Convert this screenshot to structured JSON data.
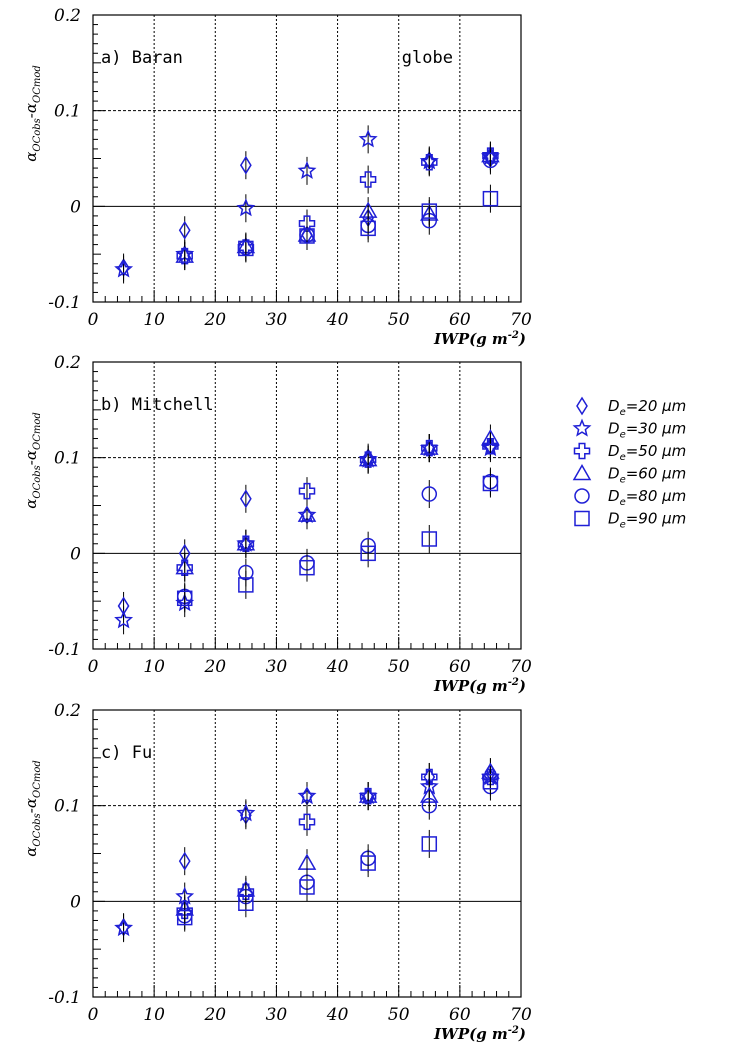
{
  "chart_data": [
    {
      "type": "scatter",
      "panel_label": "a) Baran",
      "annotation": "globe",
      "xlabel": "IWP(g m-2)",
      "xlabel_main": "IWP(g m",
      "xlabel_exp": "-2",
      "xlabel_close": ")",
      "ylabel_alpha1": "α",
      "ylabel_sub1": "OCobs",
      "ylabel_minus": "-",
      "ylabel_alpha2": "α",
      "ylabel_sub2": "OCmod",
      "xlim": [
        0,
        70
      ],
      "ylim": [
        -0.1,
        0.2
      ],
      "xticks": [
        0,
        10,
        20,
        30,
        40,
        50,
        60,
        70
      ],
      "xtick_labels": [
        "0",
        "10",
        "20",
        "30",
        "40",
        "50",
        "60",
        "70"
      ],
      "yticks": [
        -0.1,
        0,
        0.1,
        0.2
      ],
      "ytick_labels": [
        "-0.1",
        "0",
        "0.1",
        "0.2"
      ],
      "series": [
        {
          "name": "De=20 µm",
          "marker": "diamond",
          "points": [
            [
              5,
              -0.064
            ],
            [
              15,
              -0.025
            ],
            [
              25,
              0.043
            ],
            [
              35,
              -0.03
            ],
            [
              45,
              -0.012
            ],
            [
              55,
              0.048
            ],
            [
              65,
              0.05
            ]
          ]
        },
        {
          "name": "De=30 µm",
          "marker": "star",
          "points": [
            [
              5,
              -0.066
            ],
            [
              15,
              -0.05
            ],
            [
              25,
              -0.002
            ],
            [
              35,
              0.037
            ],
            [
              45,
              0.07
            ],
            [
              55,
              0.047
            ],
            [
              65,
              0.052
            ]
          ]
        },
        {
          "name": "De=50 µm",
          "marker": "cross",
          "points": [
            [
              15,
              -0.052
            ],
            [
              25,
              -0.043
            ],
            [
              35,
              -0.018
            ],
            [
              45,
              0.028
            ],
            [
              55,
              0.046
            ],
            [
              65,
              0.053
            ]
          ]
        },
        {
          "name": "De=60 µm",
          "marker": "triangle",
          "points": [
            [
              15,
              -0.052
            ],
            [
              25,
              -0.042
            ],
            [
              35,
              -0.03
            ],
            [
              45,
              -0.005
            ],
            [
              55,
              -0.008
            ],
            [
              65,
              0.053
            ]
          ]
        },
        {
          "name": "De=80 µm",
          "marker": "circle",
          "points": [
            [
              25,
              -0.043
            ],
            [
              35,
              -0.03
            ],
            [
              45,
              -0.02
            ],
            [
              55,
              -0.015
            ],
            [
              65,
              0.048
            ]
          ]
        },
        {
          "name": "De=90 µm",
          "marker": "square",
          "points": [
            [
              25,
              -0.044
            ],
            [
              35,
              -0.031
            ],
            [
              45,
              -0.023
            ],
            [
              55,
              -0.005
            ],
            [
              65,
              0.008
            ]
          ]
        }
      ]
    },
    {
      "type": "scatter",
      "panel_label": "b) Mitchell",
      "annotation": "",
      "xlabel": "IWP(g m-2)",
      "xlabel_main": "IWP(g m",
      "xlabel_exp": "-2",
      "xlabel_close": ")",
      "ylabel_alpha1": "α",
      "ylabel_sub1": "OCobs",
      "ylabel_minus": "-",
      "ylabel_alpha2": "α",
      "ylabel_sub2": "OCmod",
      "xlim": [
        0,
        70
      ],
      "ylim": [
        -0.1,
        0.2
      ],
      "xticks": [
        0,
        10,
        20,
        30,
        40,
        50,
        60,
        70
      ],
      "xtick_labels": [
        "0",
        "10",
        "20",
        "30",
        "40",
        "50",
        "60",
        "70"
      ],
      "yticks": [
        -0.1,
        0,
        0.1,
        0.2
      ],
      "ytick_labels": [
        "-0.1",
        "0",
        "0.1",
        "0.2"
      ],
      "series": [
        {
          "name": "De=20 µm",
          "marker": "diamond",
          "points": [
            [
              5,
              -0.055
            ],
            [
              15,
              0.0
            ],
            [
              25,
              0.057
            ],
            [
              35,
              0.04
            ],
            [
              45,
              0.1
            ],
            [
              55,
              0.11
            ],
            [
              65,
              0.112
            ]
          ]
        },
        {
          "name": "De=30 µm",
          "marker": "star",
          "points": [
            [
              5,
              -0.07
            ],
            [
              15,
              -0.052
            ],
            [
              25,
              0.01
            ],
            [
              35,
              0.04
            ],
            [
              45,
              0.098
            ],
            [
              55,
              0.11
            ],
            [
              65,
              0.11
            ]
          ]
        },
        {
          "name": "De=50 µm",
          "marker": "cross",
          "points": [
            [
              15,
              -0.015
            ],
            [
              25,
              0.01
            ],
            [
              35,
              0.065
            ],
            [
              45,
              0.098
            ],
            [
              55,
              0.11
            ],
            [
              65,
              0.112
            ]
          ]
        },
        {
          "name": "De=60 µm",
          "marker": "triangle",
          "points": [
            [
              15,
              -0.015
            ],
            [
              25,
              0.01
            ],
            [
              35,
              0.04
            ],
            [
              45,
              0.098
            ],
            [
              55,
              0.11
            ],
            [
              65,
              0.12
            ]
          ]
        },
        {
          "name": "De=80 µm",
          "marker": "circle",
          "points": [
            [
              15,
              -0.045
            ],
            [
              25,
              -0.02
            ],
            [
              35,
              -0.01
            ],
            [
              45,
              0.008
            ],
            [
              55,
              0.062
            ],
            [
              65,
              0.075
            ]
          ]
        },
        {
          "name": "De=90 µm",
          "marker": "square",
          "points": [
            [
              15,
              -0.047
            ],
            [
              25,
              -0.033
            ],
            [
              35,
              -0.015
            ],
            [
              45,
              0.0
            ],
            [
              55,
              0.015
            ],
            [
              65,
              0.073
            ]
          ]
        }
      ]
    },
    {
      "type": "scatter",
      "panel_label": "c) Fu",
      "annotation": "",
      "xlabel": "IWP(g m-2)",
      "xlabel_main": "IWP(g m",
      "xlabel_exp": "-2",
      "xlabel_close": ")",
      "ylabel_alpha1": "α",
      "ylabel_sub1": "OCobs",
      "ylabel_minus": "-",
      "ylabel_alpha2": "α",
      "ylabel_sub2": "OCmod",
      "xlim": [
        0,
        70
      ],
      "ylim": [
        -0.1,
        0.2
      ],
      "xticks": [
        0,
        10,
        20,
        30,
        40,
        50,
        60,
        70
      ],
      "xtick_labels": [
        "0",
        "10",
        "20",
        "30",
        "40",
        "50",
        "60",
        "70"
      ],
      "yticks": [
        -0.1,
        0,
        0.1,
        0.2
      ],
      "ytick_labels": [
        "-0.1",
        "0",
        "0.1",
        "0.2"
      ],
      "series": [
        {
          "name": "De=20 µm",
          "marker": "diamond",
          "points": [
            [
              5,
              -0.027
            ],
            [
              15,
              0.042
            ],
            [
              25,
              0.09
            ],
            [
              35,
              0.11
            ],
            [
              45,
              0.11
            ],
            [
              55,
              0.13
            ],
            [
              65,
              0.135
            ]
          ]
        },
        {
          "name": "De=30 µm",
          "marker": "star",
          "points": [
            [
              5,
              -0.028
            ],
            [
              15,
              0.005
            ],
            [
              25,
              0.092
            ],
            [
              35,
              0.11
            ],
            [
              45,
              0.11
            ],
            [
              55,
              0.12
            ],
            [
              65,
              0.13
            ]
          ]
        },
        {
          "name": "De=50 µm",
          "marker": "cross",
          "points": [
            [
              15,
              -0.01
            ],
            [
              25,
              0.01
            ],
            [
              35,
              0.083
            ],
            [
              45,
              0.11
            ],
            [
              55,
              0.13
            ],
            [
              65,
              0.13
            ]
          ]
        },
        {
          "name": "De=60 µm",
          "marker": "triangle",
          "points": [
            [
              15,
              -0.008
            ],
            [
              25,
              0.012
            ],
            [
              35,
              0.04
            ],
            [
              45,
              0.11
            ],
            [
              55,
              0.11
            ],
            [
              65,
              0.135
            ]
          ]
        },
        {
          "name": "De=80 µm",
          "marker": "circle",
          "points": [
            [
              15,
              -0.015
            ],
            [
              25,
              0.005
            ],
            [
              35,
              0.02
            ],
            [
              45,
              0.045
            ],
            [
              55,
              0.1
            ],
            [
              65,
              0.12
            ]
          ]
        },
        {
          "name": "De=90 µm",
          "marker": "square",
          "points": [
            [
              15,
              -0.017
            ],
            [
              25,
              -0.002
            ],
            [
              35,
              0.015
            ],
            [
              45,
              0.04
            ],
            [
              55,
              0.06
            ],
            [
              65,
              0.125
            ]
          ]
        }
      ]
    }
  ],
  "legend": {
    "entries": [
      {
        "marker": "diamond",
        "prefix": "D",
        "sub": "e",
        "text": "=20 µm"
      },
      {
        "marker": "star",
        "prefix": "D",
        "sub": "e",
        "text": "=30 µm"
      },
      {
        "marker": "cross",
        "prefix": "D",
        "sub": "e",
        "text": "=50 µm"
      },
      {
        "marker": "triangle",
        "prefix": "D",
        "sub": "e",
        "text": "=60 µm"
      },
      {
        "marker": "circle",
        "prefix": "D",
        "sub": "e",
        "text": "=80 µm"
      },
      {
        "marker": "square",
        "prefix": "D",
        "sub": "e",
        "text": "=90 µm"
      }
    ]
  },
  "colors": {
    "marker": "#1f1fd6",
    "axis": "#000000",
    "grid": "#000000"
  }
}
